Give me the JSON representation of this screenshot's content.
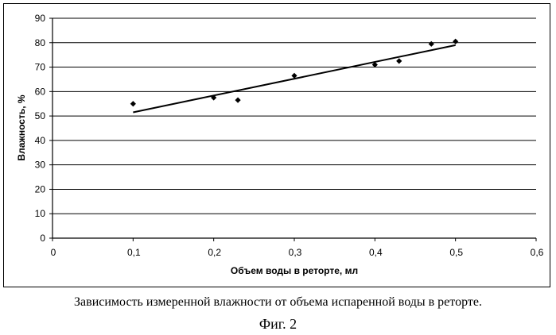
{
  "chart_data": {
    "type": "scatter",
    "xlabel": "Объем воды в реторте, мл",
    "ylabel": "Влажность, %",
    "xlim": [
      0,
      0.6
    ],
    "ylim": [
      0,
      90
    ],
    "x_ticks": [
      "0",
      "0,1",
      "0,2",
      "0,3",
      "0,4",
      "0,5",
      "0,6"
    ],
    "y_ticks": [
      "0",
      "10",
      "20",
      "30",
      "40",
      "50",
      "60",
      "70",
      "80",
      "90"
    ],
    "grid": "horizontal",
    "legend": "none",
    "series": [
      {
        "points": [
          {
            "x": 0.1,
            "y": 55
          },
          {
            "x": 0.2,
            "y": 57.5
          },
          {
            "x": 0.23,
            "y": 56.5
          },
          {
            "x": 0.3,
            "y": 66.5
          },
          {
            "x": 0.4,
            "y": 71
          },
          {
            "x": 0.43,
            "y": 72.5
          },
          {
            "x": 0.47,
            "y": 79.5
          },
          {
            "x": 0.5,
            "y": 80.5
          }
        ]
      }
    ],
    "trendline": {
      "type": "linear",
      "from": {
        "x": 0.1,
        "y": 51.5
      },
      "to": {
        "x": 0.5,
        "y": 79
      }
    }
  },
  "caption": "Зависимость измеренной влажности от объема испаренной воды в реторте.",
  "figure_label": "Фиг. 2"
}
